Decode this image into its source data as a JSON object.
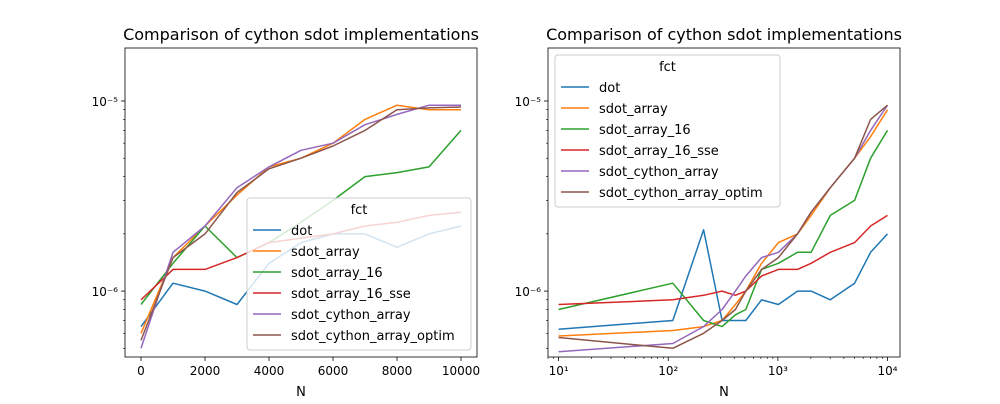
{
  "chart_data": [
    {
      "type": "line",
      "title": "Comparison of cython sdot implementations",
      "xlabel": "N",
      "ylabel": "",
      "xscale": "linear",
      "yscale": "log",
      "xlim": [
        -500,
        10500
      ],
      "ylim": [
        4.5e-07,
        1.9e-05
      ],
      "xticks": [
        0,
        2000,
        4000,
        6000,
        8000,
        10000
      ],
      "xtick_labels": [
        "0",
        "2000",
        "4000",
        "6000",
        "8000",
        "10000"
      ],
      "yticks": [
        1e-06,
        1e-05
      ],
      "ytick_labels": [
        "10⁻⁶",
        "10⁻⁵"
      ],
      "grid": false,
      "legend": {
        "title": "fct",
        "placement": "lower right"
      },
      "x": [
        0,
        1000,
        2000,
        3000,
        4000,
        5000,
        6000,
        7000,
        8000,
        9000,
        10000
      ],
      "series": [
        {
          "name": "dot",
          "color": "#1f77b4",
          "values": [
            6.5e-07,
            1.1e-06,
            1e-06,
            8.5e-07,
            1.4e-06,
            1.8e-06,
            2e-06,
            2e-06,
            1.7e-06,
            2e-06,
            2.2e-06
          ]
        },
        {
          "name": "sdot_array",
          "color": "#ff7f0e",
          "values": [
            6e-07,
            1.5e-06,
            2.2e-06,
            3.2e-06,
            4.5e-06,
            5e-06,
            6e-06,
            8e-06,
            9.5e-06,
            9e-06,
            9e-06
          ]
        },
        {
          "name": "sdot_array_16",
          "color": "#2ca02c",
          "values": [
            8.5e-07,
            1.4e-06,
            2.2e-06,
            1.5e-06,
            1.8e-06,
            2.3e-06,
            3e-06,
            4e-06,
            4.2e-06,
            4.5e-06,
            7e-06
          ]
        },
        {
          "name": "sdot_array_16_sse",
          "color": "#d62728",
          "values": [
            9e-07,
            1.3e-06,
            1.3e-06,
            1.5e-06,
            1.8e-06,
            1.9e-06,
            2e-06,
            2.2e-06,
            2.3e-06,
            2.5e-06,
            2.6e-06
          ]
        },
        {
          "name": "sdot_cython_array",
          "color": "#9467bd",
          "values": [
            5e-07,
            1.6e-06,
            2.2e-06,
            3.5e-06,
            4.5e-06,
            5.5e-06,
            6e-06,
            7.5e-06,
            8.5e-06,
            9.5e-06,
            9.5e-06
          ]
        },
        {
          "name": "sdot_cython_array_optim",
          "color": "#8c564b",
          "values": [
            5.5e-07,
            1.5e-06,
            2e-06,
            3.3e-06,
            4.4e-06,
            5e-06,
            5.8e-06,
            7e-06,
            9e-06,
            9.2e-06,
            9.3e-06
          ]
        }
      ]
    },
    {
      "type": "line",
      "title": "Comparison of cython sdot implementations",
      "xlabel": "N",
      "ylabel": "",
      "xscale": "log",
      "yscale": "log",
      "xlim": [
        8,
        13000
      ],
      "ylim": [
        4.5e-07,
        1.9e-05
      ],
      "xticks": [
        10,
        100,
        1000,
        10000
      ],
      "xtick_labels": [
        "10¹",
        "10²",
        "10³",
        "10⁴"
      ],
      "yticks": [
        1e-06,
        1e-05
      ],
      "ytick_labels": [
        "10⁻⁶",
        "10⁻⁵"
      ],
      "grid": false,
      "legend": {
        "title": "fct",
        "placement": "upper left"
      },
      "x": [
        10,
        110,
        210,
        310,
        410,
        510,
        710,
        1010,
        1510,
        2010,
        3010,
        5010,
        7010,
        10000
      ],
      "series": [
        {
          "name": "dot",
          "color": "#1f77b4",
          "values": [
            6.3e-07,
            7e-07,
            2.1e-06,
            7e-07,
            7e-07,
            7e-07,
            9e-07,
            8.5e-07,
            1e-06,
            1e-06,
            9e-07,
            1.1e-06,
            1.6e-06,
            2e-06
          ]
        },
        {
          "name": "sdot_array",
          "color": "#ff7f0e",
          "values": [
            5.8e-07,
            6.2e-07,
            6.5e-07,
            7e-07,
            8.5e-07,
            1e-06,
            1.4e-06,
            1.8e-06,
            2e-06,
            2.5e-06,
            3.5e-06,
            5e-06,
            6.5e-06,
            9e-06
          ]
        },
        {
          "name": "sdot_array_16",
          "color": "#2ca02c",
          "values": [
            8e-07,
            1.1e-06,
            7e-07,
            6.5e-07,
            7.5e-07,
            8e-07,
            1.3e-06,
            1.4e-06,
            1.6e-06,
            1.6e-06,
            2.5e-06,
            3e-06,
            5e-06,
            7e-06
          ]
        },
        {
          "name": "sdot_array_16_sse",
          "color": "#d62728",
          "values": [
            8.5e-07,
            9e-07,
            9.5e-07,
            1e-06,
            9.5e-07,
            1e-06,
            1.2e-06,
            1.3e-06,
            1.3e-06,
            1.4e-06,
            1.6e-06,
            1.8e-06,
            2.2e-06,
            2.5e-06
          ]
        },
        {
          "name": "sdot_cython_array",
          "color": "#9467bd",
          "values": [
            4.8e-07,
            5.3e-07,
            6.5e-07,
            8e-07,
            1e-06,
            1.2e-06,
            1.5e-06,
            1.6e-06,
            2e-06,
            2.6e-06,
            3.5e-06,
            5e-06,
            7e-06,
            9.5e-06
          ]
        },
        {
          "name": "sdot_cython_array_optim",
          "color": "#8c564b",
          "values": [
            5.7e-07,
            5e-07,
            6e-07,
            7e-07,
            8e-07,
            1e-06,
            1.3e-06,
            1.5e-06,
            2e-06,
            2.6e-06,
            3.5e-06,
            5e-06,
            8e-06,
            9.5e-06
          ]
        }
      ]
    }
  ]
}
